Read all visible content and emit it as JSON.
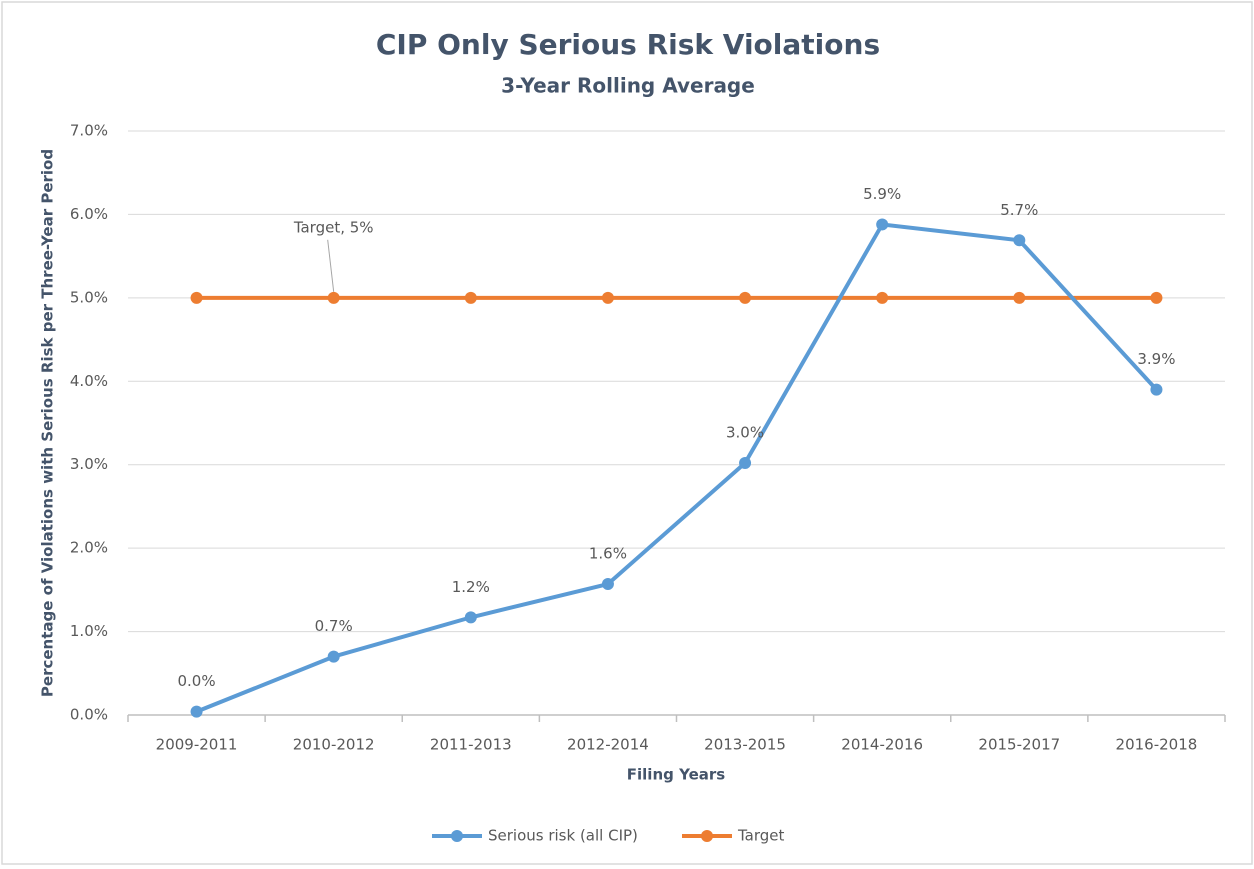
{
  "chart_data": {
    "type": "line",
    "title": "CIP Only Serious Risk Violations",
    "subtitle": "3-Year Rolling Average",
    "x_label": "Filing Years",
    "y_label": "Percentage of Violations with Serious Risk per Three-Year Period",
    "categories": [
      "2009-2011",
      "2010-2012",
      "2011-2013",
      "2012-2014",
      "2013-2015",
      "2014-2016",
      "2015-2017",
      "2016-2018"
    ],
    "series": [
      {
        "name": "Serious risk (all CIP)",
        "color": "#5b9bd5",
        "values": [
          0.04,
          0.7,
          1.17,
          1.57,
          3.02,
          5.88,
          5.69,
          3.9
        ],
        "value_labels": [
          "0.0%",
          "0.7%",
          "1.2%",
          "1.6%",
          "3.0%",
          "5.9%",
          "5.7%",
          "3.9%"
        ]
      },
      {
        "name": "Target",
        "color": "#ed7d31",
        "values": [
          5,
          5,
          5,
          5,
          5,
          5,
          5,
          5
        ]
      }
    ],
    "annotation": {
      "text": "Target, 5%",
      "series": 1,
      "index": 1
    },
    "ylim": [
      0,
      7
    ],
    "yticks": [
      {
        "value": 0,
        "label": "0.0%"
      },
      {
        "value": 1,
        "label": "1.0%"
      },
      {
        "value": 2,
        "label": "2.0%"
      },
      {
        "value": 3,
        "label": "3.0%"
      },
      {
        "value": 4,
        "label": "4.0%"
      },
      {
        "value": 5,
        "label": "5.0%"
      },
      {
        "value": 6,
        "label": "6.0%"
      },
      {
        "value": 7,
        "label": "7.0%"
      }
    ],
    "grid": true,
    "legend": "bottom"
  }
}
